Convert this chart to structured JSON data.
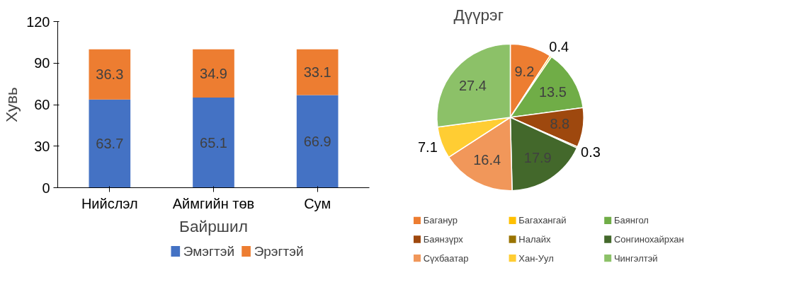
{
  "chart_data": [
    {
      "type": "bar",
      "stacked": true,
      "xlabel": "Байршил",
      "ylabel": "Хувь",
      "categories": [
        "Нийслэл",
        "Аймгийн төв",
        "Сум"
      ],
      "series": [
        {
          "name": "Эмэгтэй",
          "color": "#4472c4",
          "values": [
            63.7,
            65.1,
            66.9
          ]
        },
        {
          "name": "Эрэгтэй",
          "color": "#ed7d31",
          "values": [
            36.3,
            34.9,
            33.1
          ]
        }
      ],
      "ylim": [
        0,
        120
      ],
      "yticks": [
        0,
        30,
        60,
        90,
        120
      ],
      "grid": false,
      "legend": "bottom",
      "data_labels": true
    },
    {
      "type": "pie",
      "title": "Дүүрэг",
      "categories": [
        "Баганур",
        "Багахангай",
        "Баянгол",
        "Баянзүрх",
        "Налайх",
        "Сонгинохайрхан",
        "Сүхбаатар",
        "Хан-Уул",
        "Чингэлтэй"
      ],
      "values": [
        9.2,
        0.4,
        13.5,
        8.8,
        0.3,
        17.9,
        16.4,
        7.1,
        27.4
      ],
      "colors": [
        "#ed7d31",
        "#ffc000",
        "#70ad47",
        "#9e480e",
        "#997300",
        "#43682b",
        "#f1975a",
        "#ffcd33",
        "#8cc168"
      ],
      "legend": "bottom",
      "data_labels": true
    }
  ]
}
